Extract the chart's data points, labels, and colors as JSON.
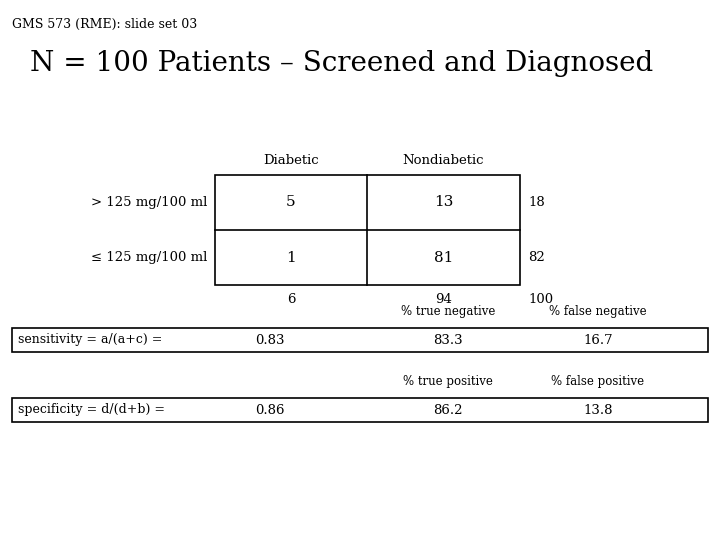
{
  "slide_label": "GMS 573 (RME): slide set 03",
  "title": "N = 100 Patients – Screened and Diagnosed",
  "bg_color": "#ffffff",
  "text_color": "#000000",
  "col_headers": [
    "Diabetic",
    "Nondiabetic"
  ],
  "row_labels": [
    "> 125 mg/100 ml",
    "≤ 125 mg/100 ml"
  ],
  "table_values": [
    [
      5,
      13
    ],
    [
      1,
      81
    ]
  ],
  "row_totals": [
    18,
    82
  ],
  "col_totals": [
    6,
    94,
    100
  ],
  "sensitivity_label": "sensitivity = a/(a+c) =",
  "sensitivity_value": "0.83",
  "sensitivity_true_neg_label": "% true negative",
  "sensitivity_false_neg_label": "% false negative",
  "sensitivity_true_neg": "83.3",
  "sensitivity_false_neg": "16.7",
  "specificity_label": "specificity = d/(d+b) =",
  "specificity_value": "0.86",
  "specificity_true_pos_label": "% true positive",
  "specificity_false_pos_label": "% false positive",
  "specificity_true_pos": "86.2",
  "specificity_false_pos": "13.8"
}
